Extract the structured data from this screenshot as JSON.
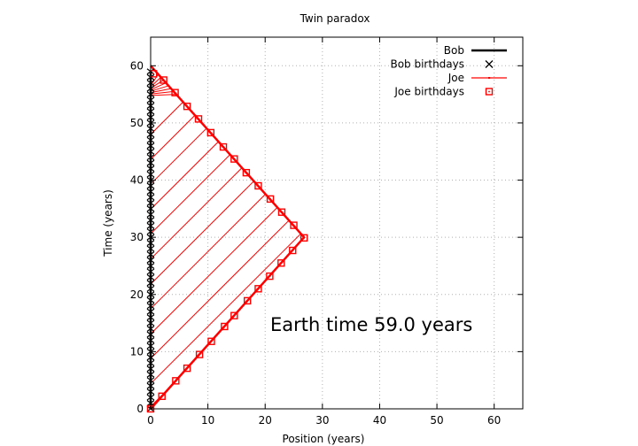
{
  "chart_data": {
    "type": "line",
    "title": "Twin paradox",
    "xlabel": "Position (years)",
    "ylabel": "Time (years)",
    "xlim": [
      0,
      65
    ],
    "ylim": [
      0,
      65
    ],
    "x_ticks": [
      0,
      10,
      20,
      30,
      40,
      50,
      60
    ],
    "y_ticks": [
      0,
      10,
      20,
      30,
      40,
      50,
      60
    ],
    "grid": true,
    "legend_position": "top-right",
    "annotation": "Earth time 59.0 years",
    "turnaround": {
      "x": 26.8,
      "t": 30.0
    },
    "current_time": 59.0,
    "series": [
      {
        "name": "Bob",
        "style": "line",
        "color": "#000000",
        "x": [
          0,
          0
        ],
        "y": [
          0,
          59
        ]
      },
      {
        "name": "Bob birthdays",
        "style": "x-markers",
        "color": "#000000",
        "x_const": 0,
        "y": [
          0,
          1,
          2,
          3,
          4,
          5,
          6,
          7,
          8,
          9,
          10,
          11,
          12,
          13,
          14,
          15,
          16,
          17,
          18,
          19,
          20,
          21,
          22,
          23,
          24,
          25,
          26,
          27,
          28,
          29,
          30,
          31,
          32,
          33,
          34,
          35,
          36,
          37,
          38,
          39,
          40,
          41,
          42,
          43,
          44,
          45,
          46,
          47,
          48,
          49,
          50,
          51,
          52,
          53,
          54,
          55,
          56,
          57,
          58,
          59
        ]
      },
      {
        "name": "Joe",
        "style": "line",
        "color": "#ff0000",
        "x": [
          0,
          26.8,
          0
        ],
        "y": [
          0,
          30.0,
          60.0
        ]
      },
      {
        "name": "Joe birthdays",
        "style": "square-markers",
        "color": "#ff0000",
        "x": [
          0,
          1.97,
          4.39,
          6.36,
          8.53,
          10.6,
          12.9,
          14.6,
          16.9,
          18.8,
          20.8,
          22.8,
          24.8,
          26.8,
          25.0,
          22.9,
          20.9,
          18.8,
          16.7,
          14.6,
          12.7,
          10.5,
          8.36,
          6.36,
          4.27,
          2.27,
          0.5
        ],
        "y": [
          0,
          2.2,
          4.9,
          7.1,
          9.5,
          11.8,
          14.4,
          16.3,
          18.9,
          21.0,
          23.2,
          25.5,
          27.7,
          29.9,
          32.1,
          34.4,
          36.7,
          39.0,
          41.3,
          43.7,
          45.8,
          48.3,
          50.7,
          52.9,
          55.3,
          57.5,
          58.6
        ]
      }
    ],
    "signal_lines": {
      "color": "#ff0000",
      "from_bob_times": [
        0.4,
        4.4,
        8.8,
        13.1,
        17.5,
        21.8,
        26.2,
        30.6,
        34.9,
        39.3,
        43.6,
        48.0
      ],
      "converging_near_t": 56.8
    }
  }
}
